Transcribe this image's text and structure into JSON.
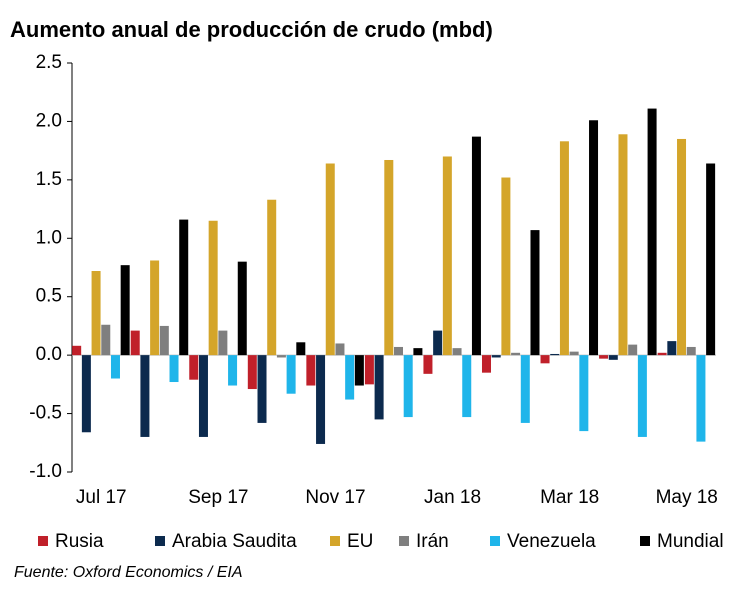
{
  "chart_data": {
    "type": "bar",
    "title": "Aumento anual de producción de crudo (mbd)",
    "source": "Fuente: Oxford Economics / EIA",
    "categories": [
      "Jul 17",
      null,
      "Sep 17",
      null,
      "Nov 17",
      null,
      "Jan 18",
      null,
      "Mar 18",
      null,
      "May 18"
    ],
    "series": [
      {
        "name": "Rusia",
        "color": "#c0202a",
        "values": [
          0.08,
          0.21,
          -0.21,
          -0.29,
          -0.26,
          -0.25,
          -0.16,
          -0.15,
          -0.07,
          -0.03,
          0.02
        ]
      },
      {
        "name": "Arabia Saudita",
        "color": "#0c2a4e",
        "values": [
          -0.66,
          -0.7,
          -0.7,
          -0.58,
          -0.76,
          -0.55,
          0.21,
          -0.02,
          0.01,
          -0.04,
          0.12
        ]
      },
      {
        "name": "EU",
        "color": "#d4a52a",
        "values": [
          0.72,
          0.81,
          1.15,
          1.33,
          1.64,
          1.67,
          1.7,
          1.52,
          1.83,
          1.89,
          1.85
        ]
      },
      {
        "name": "Irán",
        "color": "#7f7f7f",
        "values": [
          0.26,
          0.25,
          0.21,
          -0.02,
          0.1,
          0.07,
          0.06,
          0.02,
          0.03,
          0.09,
          0.07
        ]
      },
      {
        "name": "Venezuela",
        "color": "#1fb5ea",
        "values": [
          -0.2,
          -0.23,
          -0.26,
          -0.33,
          -0.38,
          -0.53,
          -0.53,
          -0.58,
          -0.65,
          -0.7,
          -0.74
        ]
      },
      {
        "name": "Mundial",
        "color": "#000000",
        "values": [
          0.77,
          1.16,
          0.8,
          0.11,
          -0.26,
          0.06,
          1.87,
          1.07,
          2.01,
          2.11,
          1.64
        ]
      }
    ],
    "ylim": [
      -1.0,
      2.5
    ],
    "yticks": [
      2.5,
      {
        "value": 2.0,
        "label": "2.0"
      },
      1.5,
      {
        "value": 1.0,
        "label": "1.0"
      },
      0.5,
      {
        "value": 0.0,
        "label": "0.0"
      },
      -0.5,
      {
        "value": -1.0,
        "label": "-1.0"
      }
    ],
    "grid": false,
    "legend": "bottom"
  }
}
